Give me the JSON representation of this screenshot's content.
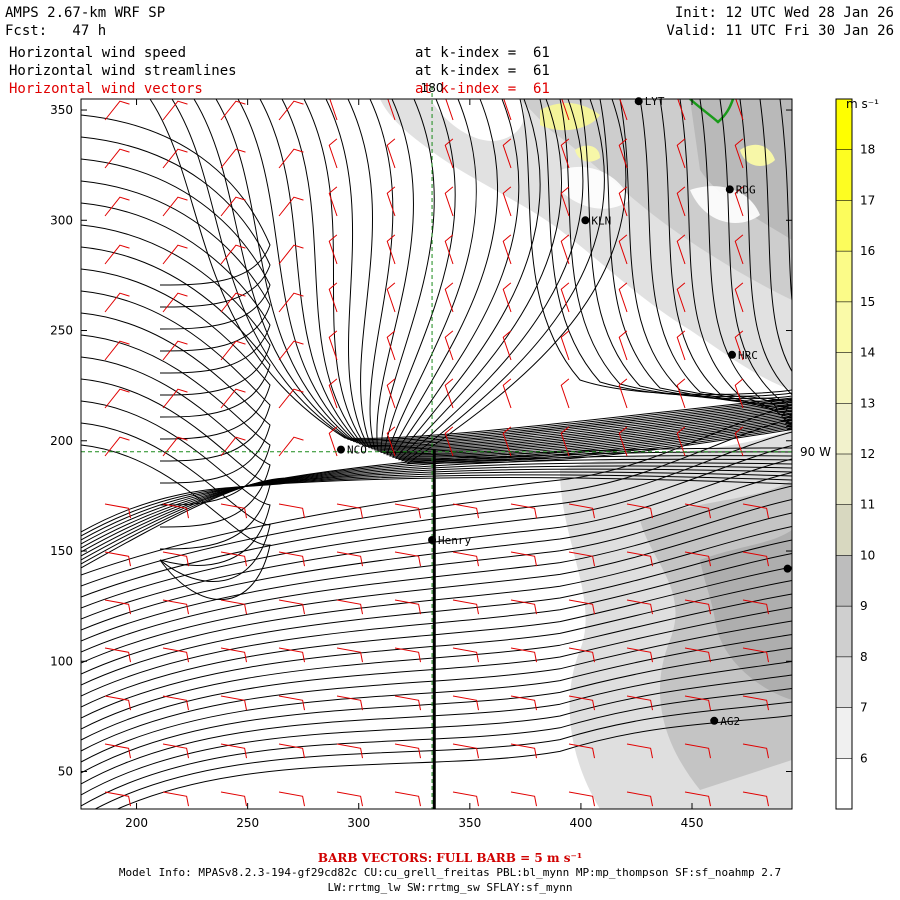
{
  "header": {
    "model": "AMPS 2.67-km WRF SP",
    "init": "Init: 12 UTC Wed 28 Jan 26",
    "fcst": "Fcst:   47 h",
    "valid": "Valid: 11 UTC Fri 30 Jan 26",
    "fields": [
      {
        "name": "Horizontal wind speed",
        "level": "at k-index =  61",
        "color": "#000000"
      },
      {
        "name": "Horizontal wind streamlines",
        "level": "at k-index =  61",
        "color": "#000000"
      },
      {
        "name": "Horizontal wind vectors",
        "level": "at k-index =  61",
        "color": "#e00000"
      }
    ]
  },
  "map": {
    "x_axis_ticks": [
      "200",
      "250",
      "300",
      "350",
      "400",
      "450"
    ],
    "y_axis_ticks": [
      "50",
      "100",
      "150",
      "200",
      "250",
      "300",
      "350"
    ],
    "x_range": [
      175,
      495
    ],
    "y_range": [
      33,
      355
    ],
    "meridian_label": "180",
    "parallel_label": "90 W",
    "meridian_x": 333,
    "parallel_y": 195,
    "section_line": {
      "x": 334,
      "y_from": 33,
      "y_to": 196
    },
    "stations": [
      {
        "name": "LYT",
        "x": 426,
        "y": 354
      },
      {
        "name": "RDG",
        "x": 467,
        "y": 314
      },
      {
        "name": "KLN",
        "x": 402,
        "y": 300
      },
      {
        "name": "HRC",
        "x": 468,
        "y": 239
      },
      {
        "name": "NCO",
        "x": 292,
        "y": 196
      },
      {
        "name": "Henry",
        "x": 333,
        "y": 155
      },
      {
        "name": "",
        "x": 493,
        "y": 142
      },
      {
        "name": "AG2",
        "x": 460,
        "y": 73
      }
    ],
    "streamline_color": "#000000",
    "barb_color": "#e00000",
    "coast_color": "#1a9a1a"
  },
  "colorbar": {
    "unit": "m s⁻¹",
    "levels": [
      "6",
      "7",
      "8",
      "9",
      "10",
      "11",
      "12",
      "13",
      "14",
      "15",
      "16",
      "17",
      "18"
    ],
    "colors": [
      "#ffffff",
      "#f0f0f0",
      "#e0e0e0",
      "#cfcfcf",
      "#bdbdbd",
      "#d8d8c0",
      "#e8e8c8",
      "#f2f2cc",
      "#f7f7c0",
      "#fafaa8",
      "#fbfb88",
      "#fcfc5c",
      "#fdfd22",
      "#ffff00"
    ]
  },
  "footer": {
    "barb_note": "BARB VECTORS:  FULL BARB = 5 m s⁻¹",
    "model_info_1": "Model Info: MPASv8.2.3-194-gf29cd82c CU:cu_grell_freitas PBL:bl_mynn MP:mp_thompson SF:sf_noahmp 2.7",
    "model_info_2": "LW:rrtmg_lw SW:rrtmg_sw SFLAY:sf_mynn"
  }
}
